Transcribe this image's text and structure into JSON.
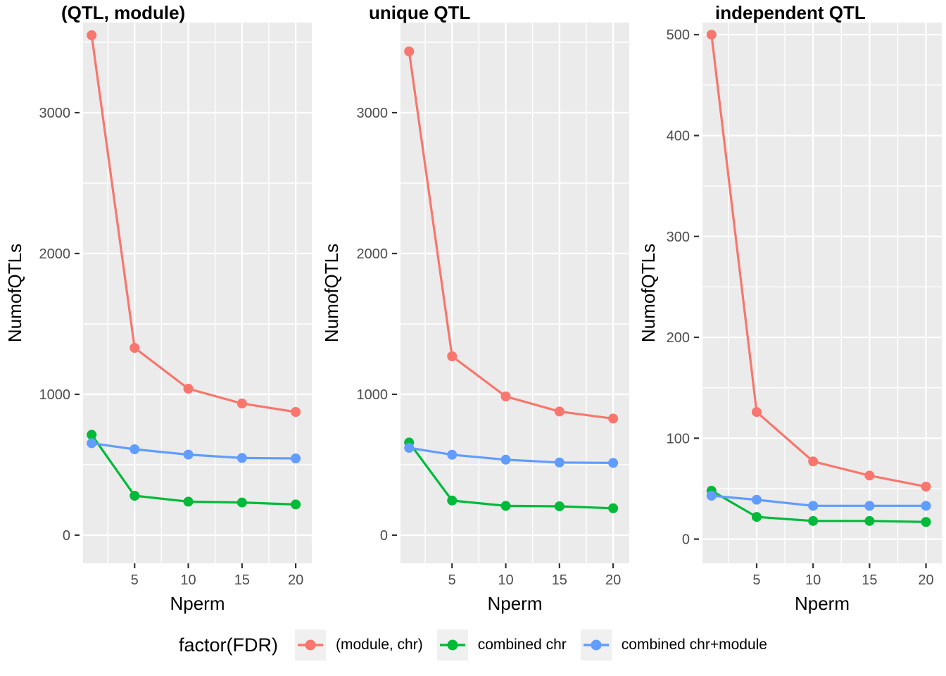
{
  "style": {
    "panel_bg": "#EBEBEB",
    "grid_color": "#FFFFFF",
    "tick_color": "#333333",
    "tick_text_color": "#4D4D4D",
    "legend_key_bg": "#F0F0F0"
  },
  "chart_data": [
    {
      "type": "line",
      "title": "(QTL, module)",
      "xlabel": "Nperm",
      "ylabel": "NumofQTLs",
      "x": [
        1,
        5,
        10,
        15,
        20
      ],
      "x_ticks": [
        5,
        10,
        15,
        20
      ],
      "x_minor": [
        2.5,
        7.5,
        12.5,
        17.5
      ],
      "y_ticks": [
        0,
        1000,
        2000,
        3000
      ],
      "y_minor": [
        500,
        1500,
        2500,
        3500
      ],
      "xlim": [
        0.2,
        21.5
      ],
      "ylim": [
        -200,
        3640
      ],
      "grid": true,
      "series": [
        {
          "name": "(module, chr)",
          "color": "#F8766D",
          "values": [
            3550,
            1330,
            1040,
            935,
            875
          ]
        },
        {
          "name": "combined chr",
          "color": "#00BA38",
          "values": [
            713,
            280,
            238,
            232,
            218
          ]
        },
        {
          "name": "combined chr+module",
          "color": "#619CFF",
          "values": [
            653,
            610,
            572,
            548,
            545
          ]
        }
      ]
    },
    {
      "type": "line",
      "title": "unique QTL",
      "xlabel": "Nperm",
      "ylabel": "NumofQTLs",
      "x": [
        1,
        5,
        10,
        15,
        20
      ],
      "x_ticks": [
        5,
        10,
        15,
        20
      ],
      "x_minor": [
        2.5,
        7.5,
        12.5,
        17.5
      ],
      "y_ticks": [
        0,
        1000,
        2000,
        3000
      ],
      "y_minor": [
        500,
        1500,
        2500,
        3500
      ],
      "xlim": [
        0.2,
        21.5
      ],
      "ylim": [
        -200,
        3640
      ],
      "grid": true,
      "series": [
        {
          "name": "(module, chr)",
          "color": "#F8766D",
          "values": [
            3435,
            1270,
            985,
            878,
            828
          ]
        },
        {
          "name": "combined chr",
          "color": "#00BA38",
          "values": [
            658,
            246,
            208,
            205,
            191
          ]
        },
        {
          "name": "combined chr+module",
          "color": "#619CFF",
          "values": [
            620,
            571,
            536,
            516,
            513
          ]
        }
      ]
    },
    {
      "type": "line",
      "title": "independent QTL",
      "xlabel": "Nperm",
      "ylabel": "NumofQTLs",
      "x": [
        1,
        5,
        10,
        15,
        20
      ],
      "x_ticks": [
        5,
        10,
        15,
        20
      ],
      "x_minor": [
        2.5,
        7.5,
        12.5,
        17.5
      ],
      "y_ticks": [
        0,
        100,
        200,
        300,
        400,
        500
      ],
      "y_minor": [
        50,
        150,
        250,
        350,
        450
      ],
      "xlim": [
        0.2,
        21.4
      ],
      "ylim": [
        -24,
        512
      ],
      "grid": true,
      "series": [
        {
          "name": "(module, chr)",
          "color": "#F8766D",
          "values": [
            500,
            126,
            77,
            63,
            52
          ]
        },
        {
          "name": "combined chr",
          "color": "#00BA38",
          "values": [
            48,
            22,
            18,
            18,
            17
          ]
        },
        {
          "name": "combined chr+module",
          "color": "#619CFF",
          "values": [
            43,
            39,
            33,
            33,
            33
          ]
        }
      ]
    }
  ],
  "legend": {
    "title": "factor(FDR)",
    "entries": [
      {
        "label": "(module, chr)",
        "color": "#F8766D"
      },
      {
        "label": "combined chr",
        "color": "#00BA38"
      },
      {
        "label": "combined chr+module",
        "color": "#619CFF"
      }
    ]
  }
}
